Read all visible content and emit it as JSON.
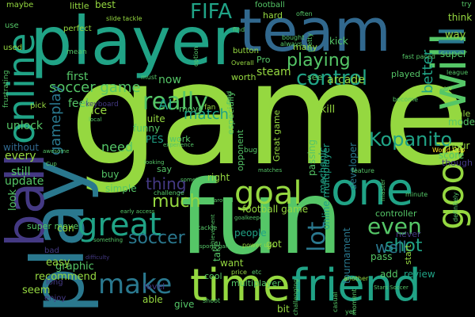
{
  "palette": {
    "background": "#000000",
    "lime": "#95d840",
    "green": "#55c667",
    "teal": "#20a386",
    "sea": "#2a788e",
    "blue": "#31688e",
    "indigo": "#443983",
    "purple": "#481f70",
    "yellow": "#fde725"
  },
  "words": {
    "game": "game",
    "fun": "fun",
    "player": "player",
    "play": "play",
    "team": "team",
    "time": "time",
    "friend": "friend",
    "ball": "ball",
    "online": "online",
    "one": "one",
    "will": "will",
    "good": "good",
    "great": "great",
    "goal": "goal",
    "fifa": "FIFA",
    "really": "really",
    "control": "control",
    "playing": "playing",
    "soccer_game": "soccer game",
    "match": "match",
    "make": "make",
    "kopanito": "Kopanito",
    "even": "even",
    "shot": "shot",
    "lot": "lot",
    "soccer": "soccer",
    "much": "much",
    "thing": "thing",
    "need": "need",
    "ai": "AI",
    "gameplay": "gameplay",
    "better": "better",
    "well": "well",
    "arcade": "arcade",
    "steam": "steam",
    "tournament": "tournament",
    "review": "review",
    "online_multiplayer": "online multiplayer",
    "football_game": "football game",
    "developer": "developer",
    "mechanic": "mechanic",
    "passing": "passing",
    "skill": "skill",
    "great_game": "Great game",
    "pes": "PES",
    "funny": "funny",
    "quite": "quite",
    "nice": "nice",
    "unlock": "unlock",
    "update": "update",
    "every": "every",
    "without": "without",
    "still": "still",
    "feel": "feel",
    "first": "first",
    "little": "little",
    "best": "best",
    "football": "football",
    "kick": "kick",
    "button": "button",
    "worth": "worth",
    "pro": "Pro",
    "hard": "hard",
    "many": "many",
    "played": "played",
    "see": "see",
    "think": "think",
    "way": "way",
    "super": "super",
    "mode": "mode",
    "hour": "hour",
    "score": "score",
    "though": "though",
    "sale": "sale",
    "work": "work",
    "move": "move",
    "say": "say",
    "right": "right",
    "buy": "buy",
    "simple": "simple",
    "controller": "controller",
    "pass": "pass",
    "never": "never",
    "start": "start",
    "want": "want",
    "take": "take",
    "got": "got",
    "people": "people",
    "multiplayer": "multiplayer",
    "graphic": "graphic",
    "recommend": "recommend",
    "easy": "easy",
    "seem": "seem",
    "look": "look",
    "able": "able",
    "give": "give",
    "bit": "bit",
    "add": "add",
    "level": "level",
    "cool": "cool",
    "long": "long",
    "enjoy": "enjoy",
    "super_move": "super move",
    "now": "now",
    "especially": "especially",
    "opponent": "opponent",
    "con": "con",
    "maybe": "maybe",
    "use": "use",
    "used": "used",
    "frustrating": "frustrating",
    "pick": "pick",
    "bad": "bad",
    "perfect": "perfect",
    "mean": "mean",
    "keyboard": "keyboard",
    "fan": "fan",
    "bug": "bug",
    "fast_paced": "fast paced",
    "league": "league",
    "become": "become",
    "know": "know",
    "world_cup": "World Cup",
    "feature": "feature",
    "minute": "minute",
    "master": "master",
    "definitely": "definitely",
    "early_access": "early access",
    "challenge": "challenge",
    "power_ups": "power ups",
    "price": "price",
    "etc": "etc",
    "shoot": "shoot",
    "another": "another",
    "casual": "casual",
    "yet": "yet",
    "back": "back",
    "moment": "moment",
    "challenging": "challenging",
    "sports_game": "sports game",
    "slide_tackle": "slide tackle",
    "option": "option",
    "often": "often",
    "always": "always",
    "bought": "bought",
    "find": "find",
    "pretty": "pretty",
    "must": "must",
    "overall": "Overall",
    "field": "field",
    "local": "local",
    "awesome": "awesome",
    "cup": "Cup",
    "sometime": "sometime",
    "around": "around",
    "something": "something",
    "difficulty": "difficulty",
    "stars_soccer": "Stars Soccer",
    "match_tackle": "tackle",
    "experience": "experience",
    "achievement": "achievement",
    "goalkeeper": "goalkeeper",
    "matches": "matches",
    "looking": "looking",
    "iii": "III",
    "try": "try"
  }
}
